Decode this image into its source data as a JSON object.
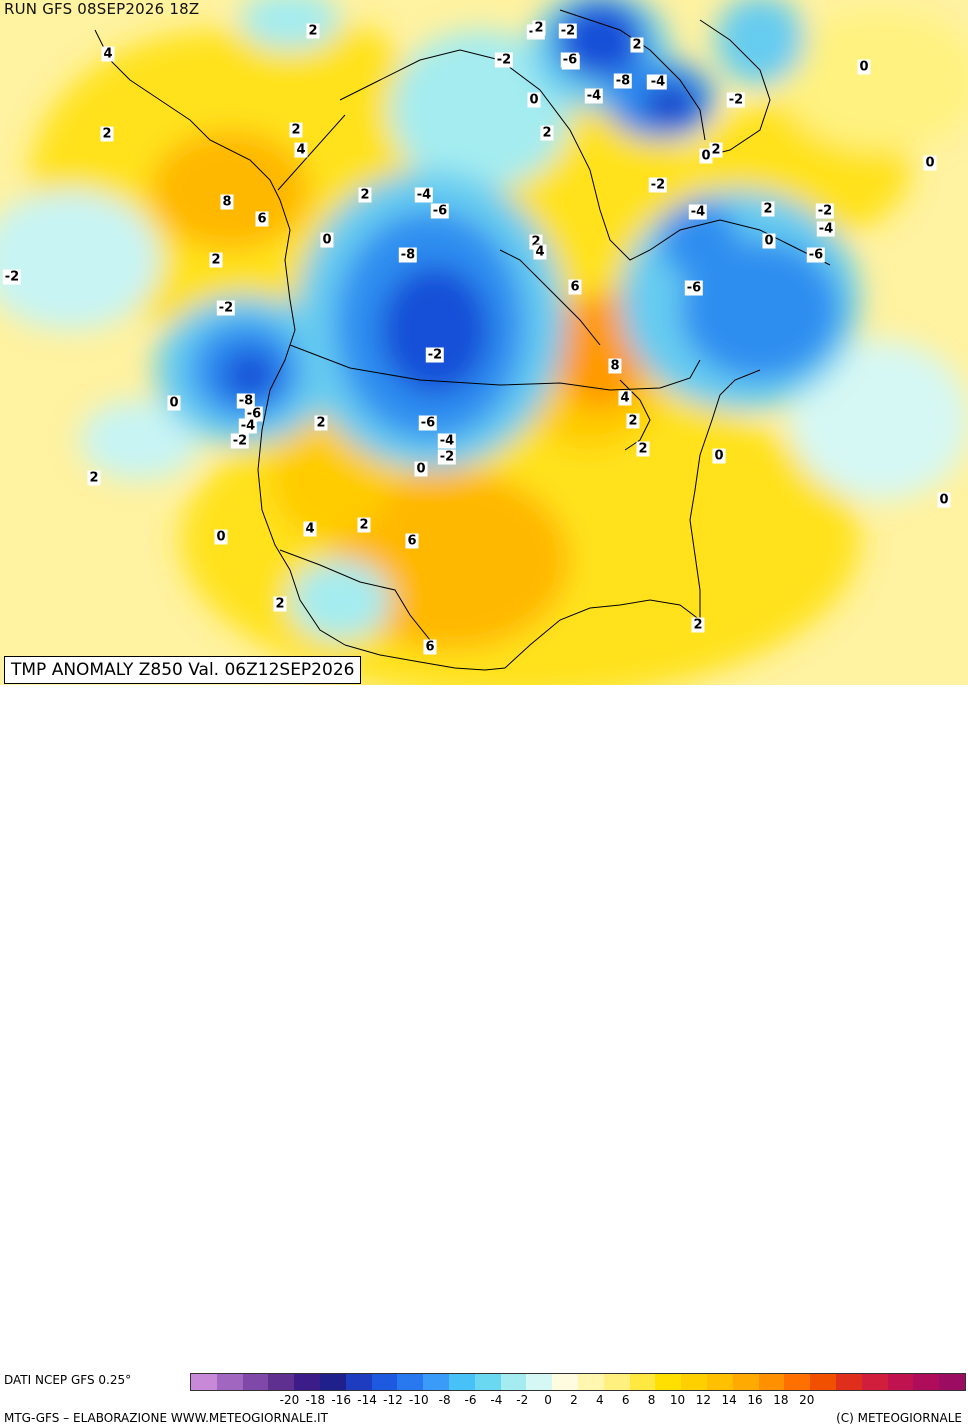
{
  "header": {
    "run_label": "RUN GFS 08SEP2026 18Z"
  },
  "map": {
    "product_title": "TMP ANOMALY Z850 Val. 06Z12SEP2026",
    "contour_labels": [
      "4",
      "2",
      "2",
      "2",
      "4",
      "8",
      "6",
      "2",
      "0",
      "-2",
      "-2",
      "-4",
      "2",
      "-6",
      "-8",
      "-2",
      "-8",
      "-6",
      "-4",
      "-2",
      "0",
      "2",
      "0",
      "-6",
      "-4",
      "-2",
      "2",
      "4",
      "2",
      "0",
      "-2",
      "-6",
      "-2",
      "-4",
      "-6",
      "-8",
      "-4",
      "-2",
      "2",
      "0",
      "2",
      "2",
      "4",
      "6",
      "8",
      "4",
      "2",
      "2",
      "-2",
      "-4",
      "0",
      "2",
      "-2",
      "-4",
      "-6",
      "-6",
      "0",
      "0",
      "0",
      "0",
      "2",
      "0",
      "-4",
      "2",
      "6",
      "2",
      "6",
      "2",
      "-2"
    ],
    "colors": {
      "very_cold": "#1450d8",
      "cold": "#2e8ef0",
      "cool": "#66ccf0",
      "neutral_cold": "#c8f4f4",
      "neutral_warm": "#fff6b8",
      "warm": "#ffe21e",
      "very_warm": "#ffb800",
      "hot": "#ff9000",
      "coastline": "#000000"
    }
  },
  "legend": {
    "source": "DATI NCEP GFS 0.25°",
    "credits": "MTG-GFS – ELABORAZIONE WWW.METEOGIORNALE.IT",
    "copyright": "(C) METEOGIORNALE",
    "tick_labels": [
      "-20",
      "-18",
      "-16",
      "-14",
      "-12",
      "-10",
      "-8",
      "-6",
      "-4",
      "-2",
      "0",
      "2",
      "4",
      "6",
      "8",
      "10",
      "12",
      "14",
      "16",
      "18",
      "20"
    ],
    "color_steps": [
      "#c88ad8",
      "#a066c0",
      "#8048a8",
      "#603090",
      "#3c1c88",
      "#20208c",
      "#1e3cc0",
      "#1e5ae0",
      "#2878f0",
      "#3a9cf8",
      "#48c0f8",
      "#6ad8f0",
      "#a4ecf0",
      "#d6f8f4",
      "#fffce0",
      "#fff6b0",
      "#fff080",
      "#ffe840",
      "#ffe000",
      "#ffd000",
      "#ffc000",
      "#ffaa00",
      "#ff9000",
      "#ff7000",
      "#f05000",
      "#e02e1c",
      "#d01e3c",
      "#c0124e",
      "#b00c5c",
      "#9c0c60"
    ]
  }
}
